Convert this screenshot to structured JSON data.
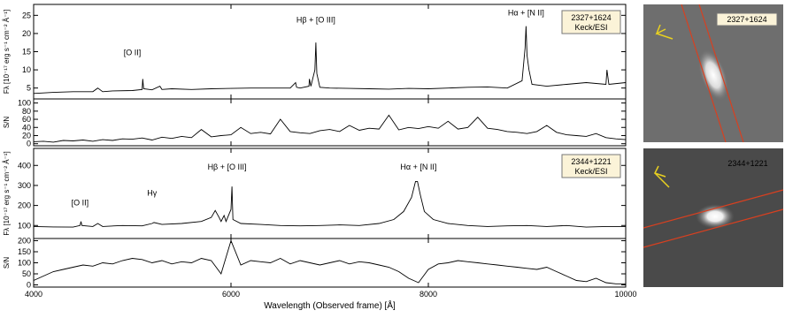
{
  "chart_data": [
    {
      "type": "line",
      "ylabel": "Fλ [10⁻¹⁷ erg s⁻¹ cm⁻² Å⁻¹]",
      "ylim": [
        2,
        28
      ],
      "yticks": [
        5,
        10,
        15,
        20,
        25
      ],
      "xlim": [
        4000,
        10000
      ],
      "box_text": [
        "2327+1624",
        "Keck/ESI"
      ],
      "annotations": [
        {
          "text": "[O II]",
          "x": 5000,
          "y": 14
        },
        {
          "text": "Hβ + [O III]",
          "x": 6860,
          "y": 23
        },
        {
          "text": "Hα + [N II]",
          "x": 8990,
          "y": 25
        }
      ],
      "x": [
        4000,
        4200,
        4400,
        4600,
        4650,
        4700,
        4800,
        5000,
        5100,
        5106,
        5115,
        5200,
        5280,
        5300,
        5400,
        5600,
        5800,
        6000,
        6200,
        6400,
        6600,
        6655,
        6665,
        6700,
        6790,
        6795,
        6810,
        6850,
        6860,
        6870,
        6900,
        7000,
        7200,
        7400,
        7600,
        7800,
        8000,
        8200,
        8400,
        8600,
        8800,
        8950,
        8980,
        8990,
        9000,
        9020,
        9050,
        9200,
        9400,
        9600,
        9800,
        9810,
        9830,
        10000
      ],
      "values": [
        3.5,
        3.8,
        4.0,
        4.0,
        5.0,
        4.0,
        4.2,
        4.3,
        4.6,
        7.5,
        4.8,
        4.5,
        5.5,
        4.6,
        4.8,
        4.6,
        4.8,
        4.9,
        5.0,
        5.0,
        5.0,
        6.5,
        5.2,
        5.0,
        5.5,
        7.5,
        5.5,
        10,
        17.5,
        9,
        5.2,
        5.0,
        4.9,
        4.8,
        4.7,
        4.9,
        4.8,
        5.0,
        5.2,
        5.3,
        5.0,
        7,
        16,
        22,
        14,
        10,
        6,
        5.5,
        6,
        6.5,
        6,
        10,
        6,
        6.5
      ]
    },
    {
      "type": "line",
      "ylabel": "S/N",
      "ylim": [
        -5,
        110
      ],
      "yticks": [
        0,
        20,
        40,
        60,
        80,
        100
      ],
      "xlim": [
        4000,
        10000
      ],
      "x": [
        4000,
        4100,
        4200,
        4300,
        4400,
        4500,
        4600,
        4700,
        4800,
        4900,
        5000,
        5100,
        5200,
        5300,
        5400,
        5500,
        5600,
        5700,
        5800,
        5900,
        6000,
        6100,
        6200,
        6300,
        6400,
        6500,
        6600,
        6700,
        6800,
        6900,
        7000,
        7100,
        7200,
        7300,
        7400,
        7500,
        7600,
        7700,
        7800,
        7900,
        8000,
        8100,
        8200,
        8300,
        8400,
        8500,
        8600,
        8700,
        8800,
        8900,
        9000,
        9100,
        9200,
        9300,
        9400,
        9500,
        9600,
        9700,
        9800,
        9900,
        10000
      ],
      "values": [
        5,
        6,
        4,
        8,
        7,
        9,
        6,
        10,
        8,
        12,
        11,
        14,
        9,
        16,
        13,
        18,
        15,
        35,
        17,
        20,
        22,
        40,
        25,
        28,
        24,
        60,
        30,
        27,
        25,
        32,
        35,
        30,
        45,
        33,
        38,
        36,
        70,
        34,
        40,
        37,
        42,
        38,
        55,
        36,
        40,
        65,
        38,
        35,
        30,
        28,
        25,
        30,
        45,
        28,
        22,
        20,
        18,
        25,
        15,
        12,
        10
      ]
    },
    {
      "type": "line",
      "ylabel": "Fλ [10⁻¹⁷ erg s⁻¹ cm⁻² Å⁻¹]",
      "ylim": [
        35,
        485
      ],
      "yticks": [
        100,
        200,
        300,
        400
      ],
      "xlim": [
        4000,
        10000
      ],
      "box_text": [
        "2344+1221",
        "Keck/ESI"
      ],
      "annotations": [
        {
          "text": "[O II]",
          "x": 4470,
          "y": 200
        },
        {
          "text": "Hγ",
          "x": 5200,
          "y": 250
        },
        {
          "text": "Hβ + [O III]",
          "x": 5960,
          "y": 380
        },
        {
          "text": "Hα + [N II]",
          "x": 7900,
          "y": 380
        }
      ],
      "x": [
        4000,
        4200,
        4400,
        4470,
        4480,
        4490,
        4600,
        4650,
        4700,
        4900,
        5100,
        5200,
        5220,
        5300,
        5500,
        5700,
        5800,
        5840,
        5880,
        5900,
        5930,
        5950,
        6000,
        6010,
        6020,
        6100,
        6300,
        6500,
        6700,
        6900,
        7100,
        7300,
        7500,
        7650,
        7750,
        7830,
        7870,
        7890,
        7920,
        7960,
        8050,
        8200,
        8400,
        8600,
        8800,
        9000,
        9200,
        9400,
        9600,
        9800,
        10000
      ],
      "values": [
        95,
        93,
        92,
        100,
        120,
        100,
        95,
        110,
        95,
        100,
        98,
        110,
        115,
        105,
        110,
        120,
        140,
        175,
        140,
        120,
        150,
        120,
        180,
        295,
        130,
        110,
        105,
        100,
        98,
        100,
        103,
        100,
        110,
        130,
        170,
        240,
        320,
        320,
        250,
        170,
        130,
        110,
        100,
        95,
        98,
        100,
        95,
        100,
        92,
        95,
        95
      ]
    },
    {
      "type": "line",
      "ylabel": "S/N",
      "xlabel": "Wavelength (Observed frame) [Å]",
      "ylim": [
        -10,
        210
      ],
      "yticks": [
        0,
        50,
        100,
        150,
        200
      ],
      "xlim": [
        4000,
        10000
      ],
      "xticks": [
        4000,
        6000,
        8000,
        10000
      ],
      "x": [
        4000,
        4100,
        4200,
        4300,
        4400,
        4500,
        4600,
        4700,
        4800,
        4900,
        5000,
        5100,
        5200,
        5300,
        5400,
        5500,
        5600,
        5700,
        5800,
        5900,
        6000,
        6100,
        6200,
        6300,
        6400,
        6500,
        6600,
        6700,
        6800,
        6900,
        7000,
        7100,
        7200,
        7300,
        7400,
        7500,
        7600,
        7700,
        7800,
        7900,
        8000,
        8100,
        8200,
        8300,
        8400,
        8500,
        8600,
        8700,
        8800,
        8900,
        9000,
        9100,
        9200,
        9300,
        9400,
        9500,
        9600,
        9700,
        9800,
        9900,
        10000
      ],
      "values": [
        20,
        40,
        60,
        70,
        80,
        90,
        85,
        100,
        95,
        110,
        120,
        115,
        100,
        110,
        95,
        105,
        100,
        120,
        110,
        50,
        200,
        90,
        110,
        105,
        100,
        120,
        95,
        110,
        100,
        90,
        100,
        110,
        95,
        105,
        100,
        90,
        80,
        60,
        30,
        10,
        70,
        95,
        100,
        110,
        105,
        100,
        95,
        90,
        85,
        80,
        75,
        70,
        80,
        60,
        40,
        20,
        15,
        30,
        10,
        5,
        5
      ]
    }
  ],
  "images": [
    {
      "label": "2327+1624"
    },
    {
      "label": "2344+1221"
    }
  ]
}
